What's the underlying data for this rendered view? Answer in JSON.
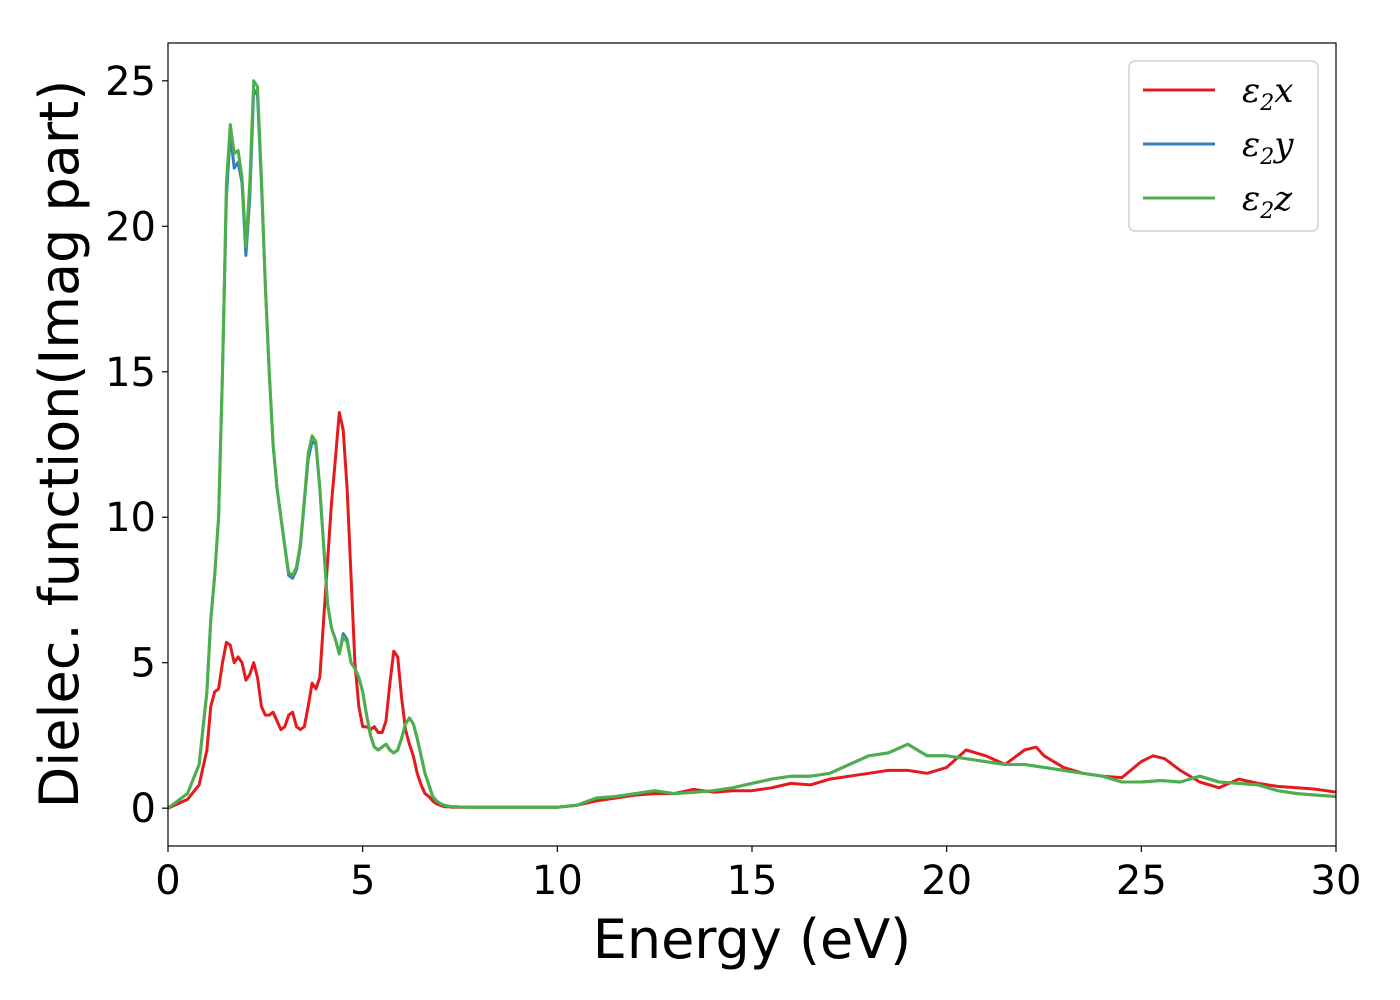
{
  "chart_data": {
    "type": "line",
    "title": "",
    "xlabel": "Energy (eV)",
    "ylabel": "Dielec. function(Imag part)",
    "xlim": [
      0,
      30
    ],
    "ylim": [
      -1.3,
      26.3
    ],
    "xticks": [
      0,
      5,
      10,
      15,
      20,
      25,
      30
    ],
    "yticks": [
      0,
      5,
      10,
      15,
      20,
      25
    ],
    "grid": false,
    "legend_position": "top-right",
    "series": [
      {
        "name": "ε2x",
        "legend": {
          "base": "ε",
          "sub": "2",
          "tail": "x"
        },
        "color": "#e41a1c",
        "x": [
          0,
          0.5,
          0.8,
          1.0,
          1.1,
          1.2,
          1.3,
          1.4,
          1.5,
          1.6,
          1.7,
          1.8,
          1.9,
          2.0,
          2.1,
          2.2,
          2.3,
          2.4,
          2.5,
          2.6,
          2.7,
          2.8,
          2.9,
          3.0,
          3.1,
          3.2,
          3.3,
          3.4,
          3.5,
          3.6,
          3.7,
          3.8,
          3.9,
          4.0,
          4.1,
          4.2,
          4.3,
          4.4,
          4.5,
          4.6,
          4.7,
          4.8,
          4.9,
          5.0,
          5.1,
          5.2,
          5.3,
          5.4,
          5.5,
          5.6,
          5.7,
          5.8,
          5.9,
          6.0,
          6.1,
          6.2,
          6.3,
          6.4,
          6.5,
          6.6,
          6.7,
          6.8,
          6.9,
          7.0,
          7.1,
          7.2,
          7.3,
          7.4,
          7.5,
          7.6,
          7.8,
          8.0,
          8.5,
          9.0,
          10.0,
          10.5,
          11.0,
          11.5,
          12.0,
          12.5,
          13.0,
          13.5,
          14.0,
          14.5,
          15.0,
          15.5,
          16.0,
          16.5,
          17.0,
          17.5,
          18.0,
          18.5,
          19.0,
          19.5,
          20.0,
          20.5,
          21.0,
          21.5,
          22.0,
          22.3,
          22.5,
          23.0,
          23.5,
          24.0,
          24.5,
          25.0,
          25.3,
          25.6,
          26.0,
          26.5,
          27.0,
          27.5,
          28.0,
          28.5,
          29.0,
          29.5,
          30.0
        ],
        "y": [
          0,
          0.3,
          0.8,
          2.0,
          3.5,
          4.0,
          4.1,
          5.0,
          5.7,
          5.6,
          5.0,
          5.2,
          5.0,
          4.4,
          4.6,
          5.0,
          4.5,
          3.5,
          3.2,
          3.2,
          3.3,
          3.0,
          2.7,
          2.8,
          3.2,
          3.3,
          2.8,
          2.7,
          2.8,
          3.5,
          4.3,
          4.1,
          4.5,
          6.5,
          8.5,
          10.5,
          12.0,
          13.6,
          13.0,
          11.0,
          8.0,
          5.0,
          3.5,
          2.8,
          2.8,
          2.7,
          2.8,
          2.6,
          2.6,
          3.0,
          4.3,
          5.4,
          5.2,
          3.8,
          2.7,
          2.2,
          1.8,
          1.2,
          0.8,
          0.5,
          0.4,
          0.25,
          0.15,
          0.1,
          0.05,
          0.05,
          0.03,
          0.03,
          0.03,
          0.03,
          0.03,
          0.03,
          0.03,
          0.03,
          0.03,
          0.1,
          0.25,
          0.35,
          0.45,
          0.5,
          0.5,
          0.65,
          0.55,
          0.6,
          0.6,
          0.7,
          0.85,
          0.8,
          1.0,
          1.1,
          1.2,
          1.3,
          1.3,
          1.2,
          1.4,
          2.0,
          1.8,
          1.5,
          2.0,
          2.1,
          1.8,
          1.4,
          1.2,
          1.1,
          1.05,
          1.6,
          1.8,
          1.7,
          1.3,
          0.9,
          0.7,
          1.0,
          0.85,
          0.75,
          0.7,
          0.65,
          0.55
        ]
      },
      {
        "name": "ε2y",
        "legend": {
          "base": "ε",
          "sub": "2",
          "tail": "y"
        },
        "color": "#377eb8",
        "x": [
          0,
          0.5,
          0.8,
          1.0,
          1.1,
          1.2,
          1.3,
          1.4,
          1.5,
          1.6,
          1.7,
          1.8,
          1.9,
          2.0,
          2.1,
          2.2,
          2.3,
          2.4,
          2.5,
          2.6,
          2.7,
          2.8,
          2.9,
          3.0,
          3.1,
          3.2,
          3.3,
          3.4,
          3.5,
          3.6,
          3.7,
          3.8,
          3.9,
          4.0,
          4.1,
          4.2,
          4.3,
          4.4,
          4.5,
          4.6,
          4.7,
          4.8,
          4.9,
          5.0,
          5.1,
          5.2,
          5.3,
          5.4,
          5.5,
          5.6,
          5.7,
          5.8,
          5.9,
          6.0,
          6.1,
          6.2,
          6.3,
          6.4,
          6.5,
          6.6,
          6.7,
          6.8,
          6.9,
          7.0,
          7.1,
          7.2,
          7.3,
          7.4,
          7.5,
          7.6,
          7.8,
          8.0,
          8.5,
          9.0,
          10.0,
          10.5,
          11.0,
          11.5,
          12.0,
          12.5,
          13.0,
          13.5,
          14.0,
          14.5,
          15.0,
          15.5,
          16.0,
          16.5,
          17.0,
          17.5,
          18.0,
          18.5,
          19.0,
          19.5,
          20.0,
          20.5,
          21.0,
          21.5,
          22.0,
          22.5,
          23.0,
          23.5,
          24.0,
          24.5,
          25.0,
          25.5,
          26.0,
          26.5,
          27.0,
          27.5,
          28.0,
          28.5,
          29.0,
          29.5,
          30.0
        ],
        "y": [
          0,
          0.5,
          1.5,
          4.0,
          6.5,
          8.0,
          10.0,
          15.0,
          21.0,
          23.2,
          22.0,
          22.2,
          21.5,
          19.0,
          21.0,
          24.7,
          24.5,
          21.5,
          18.0,
          15.0,
          12.5,
          11.0,
          10.0,
          9.0,
          8.0,
          7.9,
          8.2,
          9.0,
          10.5,
          12.0,
          12.6,
          12.5,
          11.0,
          9.0,
          7.0,
          6.2,
          5.8,
          5.3,
          6.0,
          5.8,
          5.0,
          4.8,
          4.5,
          4.0,
          3.2,
          2.5,
          2.1,
          2.0,
          2.1,
          2.2,
          2.0,
          1.9,
          2.0,
          2.4,
          2.9,
          3.1,
          2.9,
          2.4,
          1.8,
          1.2,
          0.8,
          0.4,
          0.25,
          0.15,
          0.1,
          0.07,
          0.05,
          0.05,
          0.04,
          0.04,
          0.03,
          0.03,
          0.03,
          0.03,
          0.03,
          0.1,
          0.35,
          0.4,
          0.5,
          0.6,
          0.5,
          0.55,
          0.6,
          0.7,
          0.85,
          1.0,
          1.1,
          1.1,
          1.2,
          1.5,
          1.8,
          1.9,
          2.2,
          1.8,
          1.8,
          1.7,
          1.6,
          1.5,
          1.5,
          1.4,
          1.3,
          1.2,
          1.1,
          0.9,
          0.9,
          0.95,
          0.9,
          1.1,
          0.9,
          0.85,
          0.8,
          0.6,
          0.5,
          0.45,
          0.4
        ]
      },
      {
        "name": "ε2z",
        "legend": {
          "base": "ε",
          "sub": "2",
          "tail": "z"
        },
        "color": "#4daf4a",
        "x": [
          0,
          0.5,
          0.8,
          1.0,
          1.1,
          1.2,
          1.3,
          1.4,
          1.5,
          1.6,
          1.7,
          1.8,
          1.9,
          2.0,
          2.1,
          2.2,
          2.3,
          2.4,
          2.5,
          2.6,
          2.7,
          2.8,
          2.9,
          3.0,
          3.1,
          3.2,
          3.3,
          3.4,
          3.5,
          3.6,
          3.7,
          3.8,
          3.9,
          4.0,
          4.1,
          4.2,
          4.3,
          4.4,
          4.5,
          4.6,
          4.7,
          4.8,
          4.9,
          5.0,
          5.1,
          5.2,
          5.3,
          5.4,
          5.5,
          5.6,
          5.7,
          5.8,
          5.9,
          6.0,
          6.1,
          6.2,
          6.3,
          6.4,
          6.5,
          6.6,
          6.7,
          6.8,
          6.9,
          7.0,
          7.1,
          7.2,
          7.3,
          7.4,
          7.5,
          7.6,
          7.8,
          8.0,
          8.5,
          9.0,
          10.0,
          10.5,
          11.0,
          11.5,
          12.0,
          12.5,
          13.0,
          13.5,
          14.0,
          14.5,
          15.0,
          15.5,
          16.0,
          16.5,
          17.0,
          17.5,
          18.0,
          18.5,
          19.0,
          19.5,
          20.0,
          20.5,
          21.0,
          21.5,
          22.0,
          22.5,
          23.0,
          23.5,
          24.0,
          24.5,
          25.0,
          25.5,
          26.0,
          26.5,
          27.0,
          27.5,
          28.0,
          28.5,
          29.0,
          29.5,
          30.0
        ],
        "y": [
          0,
          0.5,
          1.5,
          4.0,
          6.5,
          8.0,
          10.0,
          15.0,
          21.5,
          23.5,
          22.5,
          22.6,
          21.7,
          19.3,
          21.5,
          25.0,
          24.8,
          21.7,
          18.0,
          15.0,
          12.5,
          11.0,
          10.0,
          9.0,
          8.1,
          8.0,
          8.3,
          9.1,
          10.6,
          12.2,
          12.8,
          12.6,
          11.0,
          9.0,
          7.0,
          6.2,
          5.8,
          5.3,
          5.9,
          5.7,
          5.0,
          4.8,
          4.5,
          4.0,
          3.2,
          2.5,
          2.1,
          2.0,
          2.1,
          2.2,
          2.0,
          1.9,
          2.0,
          2.4,
          2.9,
          3.1,
          2.9,
          2.4,
          1.8,
          1.2,
          0.8,
          0.4,
          0.25,
          0.15,
          0.1,
          0.07,
          0.05,
          0.05,
          0.04,
          0.04,
          0.03,
          0.03,
          0.03,
          0.03,
          0.03,
          0.1,
          0.35,
          0.4,
          0.5,
          0.6,
          0.5,
          0.55,
          0.6,
          0.7,
          0.85,
          1.0,
          1.1,
          1.1,
          1.2,
          1.5,
          1.8,
          1.9,
          2.2,
          1.8,
          1.8,
          1.7,
          1.6,
          1.5,
          1.5,
          1.4,
          1.3,
          1.2,
          1.1,
          0.9,
          0.9,
          0.95,
          0.9,
          1.1,
          0.9,
          0.85,
          0.8,
          0.6,
          0.5,
          0.45,
          0.4
        ]
      }
    ]
  }
}
